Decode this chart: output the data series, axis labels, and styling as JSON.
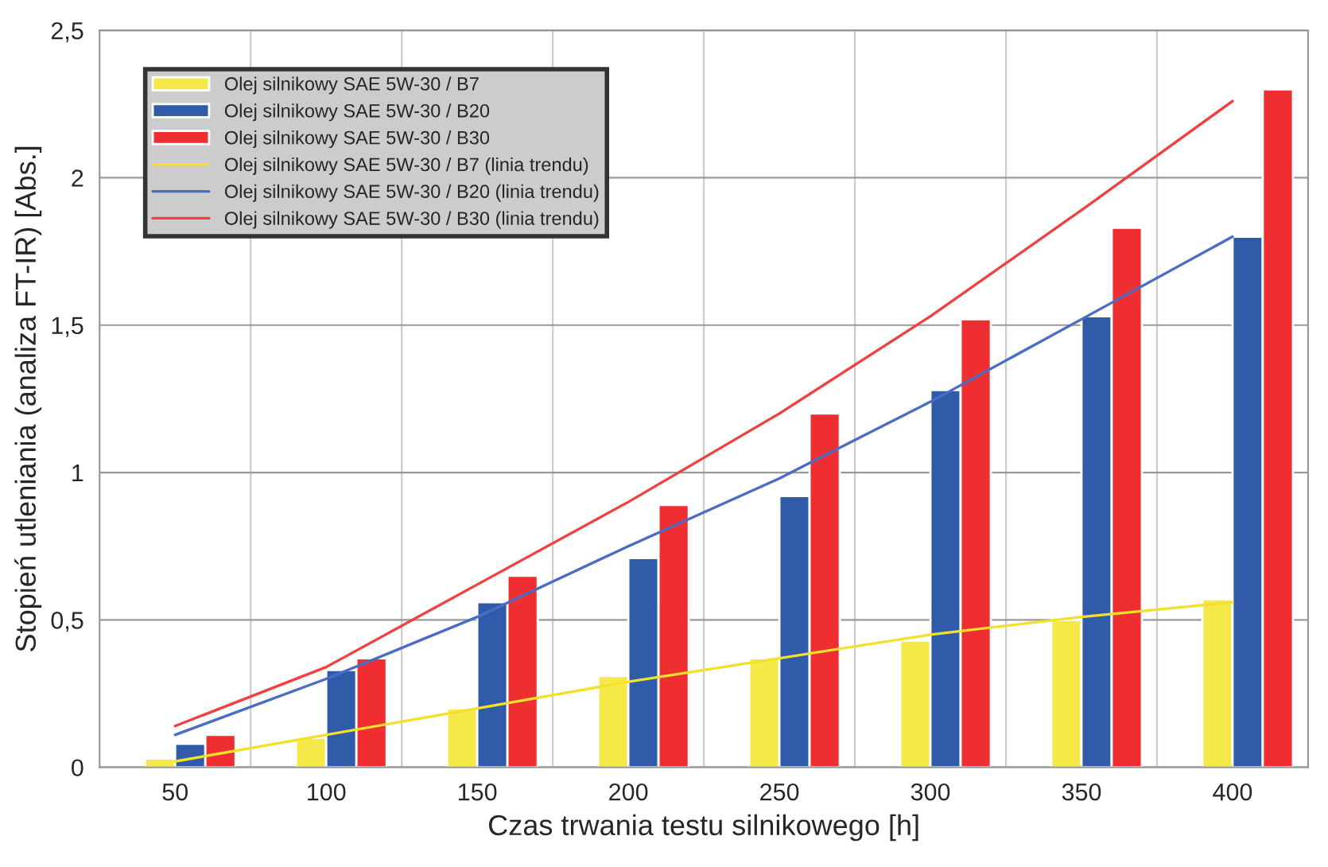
{
  "chart_data": {
    "type": "bar",
    "xlabel": "Czas trwania testu silnikowego [h]",
    "ylabel": "Stopień utleniania (analiza FT-IR) [Abs.]",
    "categories": [
      "50",
      "100",
      "150",
      "200",
      "250",
      "300",
      "350",
      "400"
    ],
    "series": [
      {
        "name": "Olej silnikowy SAE 5W-30 / B7",
        "color": "#f5e94a",
        "values": [
          0.03,
          0.1,
          0.2,
          0.31,
          0.37,
          0.43,
          0.5,
          0.57
        ]
      },
      {
        "name": "Olej silnikowy SAE 5W-30 / B20",
        "color": "#2f5ba8",
        "values": [
          0.08,
          0.33,
          0.56,
          0.71,
          0.92,
          1.28,
          1.53,
          1.8
        ]
      },
      {
        "name": "Olej silnikowy SAE 5W-30 / B30",
        "color": "#ee2e31",
        "values": [
          0.11,
          0.37,
          0.65,
          0.89,
          1.2,
          1.52,
          1.83,
          2.3
        ]
      },
      {
        "name": "Olej silnikowy SAE 5W-30 / B7 (linia trendu)",
        "type": "line",
        "color": "#f2e02a",
        "values": [
          0.02,
          0.11,
          0.2,
          0.29,
          0.37,
          0.45,
          0.51,
          0.56
        ]
      },
      {
        "name": "Olej silnikowy SAE 5W-30 / B20 (linia trendu)",
        "type": "line",
        "color": "#4a6cc4",
        "values": [
          0.11,
          0.3,
          0.51,
          0.75,
          0.98,
          1.24,
          1.52,
          1.8
        ]
      },
      {
        "name": "Olej silnikowy SAE 5W-30 / B30 (linia trendu)",
        "type": "line",
        "color": "#f04040",
        "values": [
          0.14,
          0.34,
          0.62,
          0.9,
          1.2,
          1.53,
          1.89,
          2.26
        ]
      }
    ],
    "ylim": [
      0,
      2.5
    ],
    "yticks": [
      0,
      {
        "value": 0.5,
        "label": "0,5"
      },
      1,
      {
        "value": 1.5,
        "label": "1,5"
      },
      2,
      {
        "value": 2.5,
        "label": "2,5"
      }
    ],
    "grid": true,
    "legend": "top left",
    "marker": "none",
    "line_style": "solid"
  }
}
